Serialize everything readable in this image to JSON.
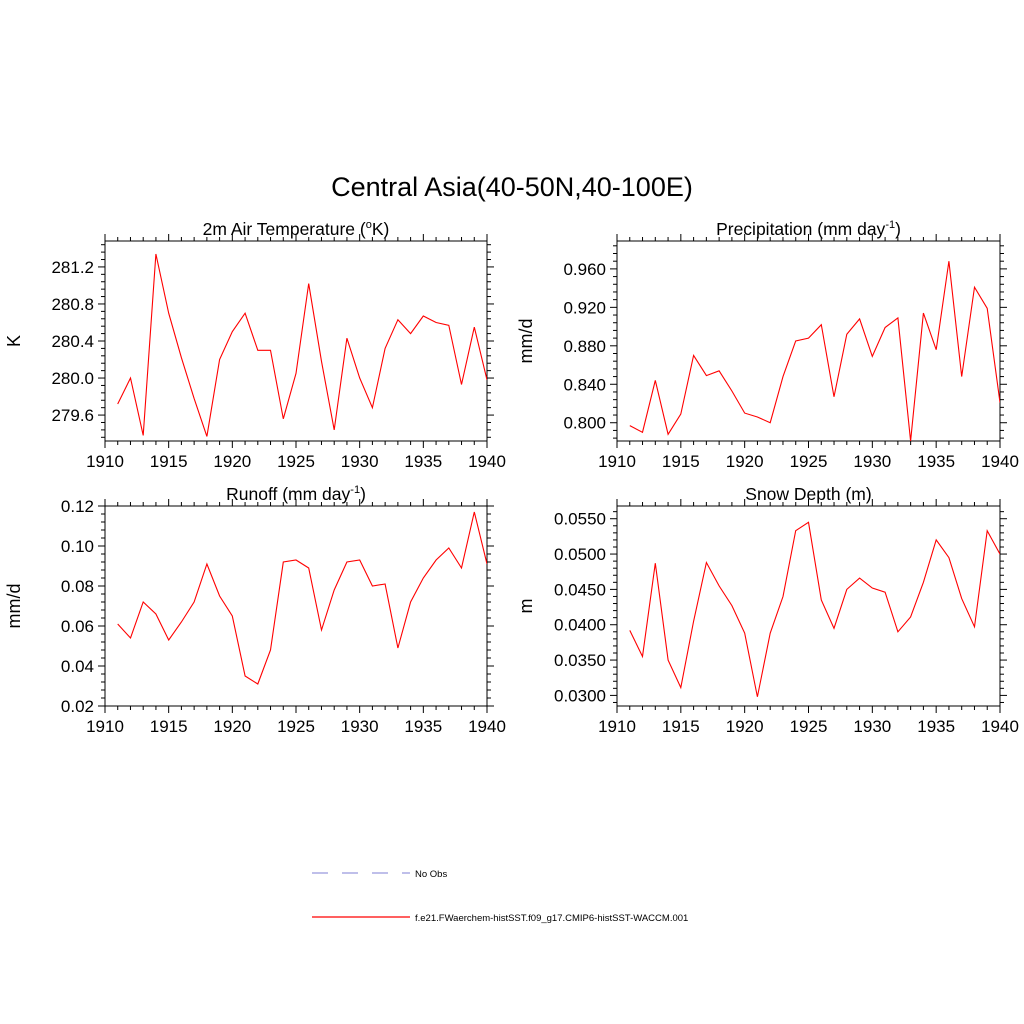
{
  "title": "Central Asia(40-50N,40-100E)",
  "legend": [
    {
      "label": "No Obs",
      "color": "#9999dd",
      "dash": true
    },
    {
      "label": "f.e21.FWaerchem-histSST.f09_g17.CMIP6-histSST-WACCM.001",
      "color": "#ff0000",
      "dash": false
    }
  ],
  "chart_data": [
    {
      "type": "line",
      "title": {
        "text": "2m Air Temperature (",
        "sup": "o",
        "after": "K)"
      },
      "ylabel": "K",
      "xlim": [
        1910,
        1940
      ],
      "ylim": [
        279.32,
        281.48
      ],
      "xticks": [
        1910,
        1915,
        1920,
        1925,
        1930,
        1935,
        1940
      ],
      "yticks": [
        "279.6",
        "280.0",
        "280.4",
        "280.8",
        "281.2"
      ],
      "series": [
        {
          "color": "#ff0000",
          "x": [
            1911,
            1912,
            1913,
            1914,
            1915,
            1916,
            1917,
            1918,
            1919,
            1920,
            1921,
            1922,
            1923,
            1924,
            1925,
            1926,
            1927,
            1928,
            1929,
            1930,
            1931,
            1932,
            1933,
            1934,
            1935,
            1936,
            1937,
            1938,
            1939,
            1940
          ],
          "y": [
            279.72,
            280.0,
            279.38,
            281.34,
            280.7,
            280.22,
            279.78,
            279.37,
            280.2,
            280.5,
            280.7,
            280.3,
            280.3,
            279.56,
            280.05,
            281.02,
            280.18,
            279.44,
            280.43,
            280.0,
            279.68,
            280.32,
            280.63,
            280.48,
            280.67,
            280.6,
            280.57,
            279.93,
            280.55,
            279.98
          ]
        }
      ]
    },
    {
      "type": "line",
      "title": {
        "text": "Precipitation (mm day",
        "sup": "-1",
        "after": ")"
      },
      "ylabel": "mm/d",
      "xlim": [
        1910,
        1940
      ],
      "ylim": [
        0.781,
        0.989
      ],
      "xticks": [
        1910,
        1915,
        1920,
        1925,
        1930,
        1935,
        1940
      ],
      "yticks": [
        "0.800",
        "0.840",
        "0.880",
        "0.920",
        "0.960"
      ],
      "series": [
        {
          "color": "#ff0000",
          "x": [
            1911,
            1912,
            1913,
            1914,
            1915,
            1916,
            1917,
            1918,
            1919,
            1920,
            1921,
            1922,
            1923,
            1924,
            1925,
            1926,
            1927,
            1928,
            1929,
            1930,
            1931,
            1932,
            1933,
            1934,
            1935,
            1936,
            1937,
            1938,
            1939,
            1940
          ],
          "y": [
            0.797,
            0.79,
            0.844,
            0.788,
            0.809,
            0.87,
            0.849,
            0.854,
            0.833,
            0.81,
            0.806,
            0.8,
            0.848,
            0.885,
            0.888,
            0.902,
            0.827,
            0.892,
            0.908,
            0.869,
            0.899,
            0.909,
            0.781,
            0.914,
            0.876,
            0.968,
            0.848,
            0.941,
            0.919,
            0.821
          ]
        }
      ]
    },
    {
      "type": "line",
      "title": {
        "text": "Runoff (mm day",
        "sup": "-1",
        "after": ")"
      },
      "ylabel": "mm/d",
      "xlim": [
        1910,
        1940
      ],
      "ylim": [
        0.02,
        0.12
      ],
      "xticks": [
        1910,
        1915,
        1920,
        1925,
        1930,
        1935,
        1940
      ],
      "yticks": [
        "0.02",
        "0.04",
        "0.06",
        "0.08",
        "0.10",
        "0.12"
      ],
      "series": [
        {
          "color": "#ff0000",
          "x": [
            1911,
            1912,
            1913,
            1914,
            1915,
            1916,
            1917,
            1918,
            1919,
            1920,
            1921,
            1922,
            1923,
            1924,
            1925,
            1926,
            1927,
            1928,
            1929,
            1930,
            1931,
            1932,
            1933,
            1934,
            1935,
            1936,
            1937,
            1938,
            1939,
            1940
          ],
          "y": [
            0.061,
            0.054,
            0.072,
            0.066,
            0.053,
            0.062,
            0.072,
            0.091,
            0.075,
            0.065,
            0.035,
            0.031,
            0.048,
            0.092,
            0.093,
            0.089,
            0.058,
            0.078,
            0.092,
            0.093,
            0.08,
            0.081,
            0.049,
            0.072,
            0.084,
            0.093,
            0.099,
            0.089,
            0.117,
            0.091
          ]
        }
      ]
    },
    {
      "type": "line",
      "title": {
        "text": "Snow Depth (m)",
        "sup": "",
        "after": ""
      },
      "ylabel": "m",
      "xlim": [
        1910,
        1940
      ],
      "ylim": [
        0.0285,
        0.0568
      ],
      "xticks": [
        1910,
        1915,
        1920,
        1925,
        1930,
        1935,
        1940
      ],
      "yticks": [
        "0.0300",
        "0.0350",
        "0.0400",
        "0.0450",
        "0.0500",
        "0.0550"
      ],
      "series": [
        {
          "color": "#ff0000",
          "x": [
            1911,
            1912,
            1913,
            1914,
            1915,
            1916,
            1917,
            1918,
            1919,
            1920,
            1921,
            1922,
            1923,
            1924,
            1925,
            1926,
            1927,
            1928,
            1929,
            1930,
            1931,
            1932,
            1933,
            1934,
            1935,
            1936,
            1937,
            1938,
            1939,
            1940
          ],
          "y": [
            0.0392,
            0.0355,
            0.0487,
            0.035,
            0.0311,
            0.0405,
            0.0488,
            0.0455,
            0.0427,
            0.0388,
            0.0298,
            0.0388,
            0.044,
            0.0533,
            0.0545,
            0.0435,
            0.0395,
            0.045,
            0.0466,
            0.0452,
            0.0446,
            0.039,
            0.0411,
            0.046,
            0.052,
            0.0495,
            0.0437,
            0.0397,
            0.0533,
            0.05
          ]
        }
      ]
    }
  ]
}
